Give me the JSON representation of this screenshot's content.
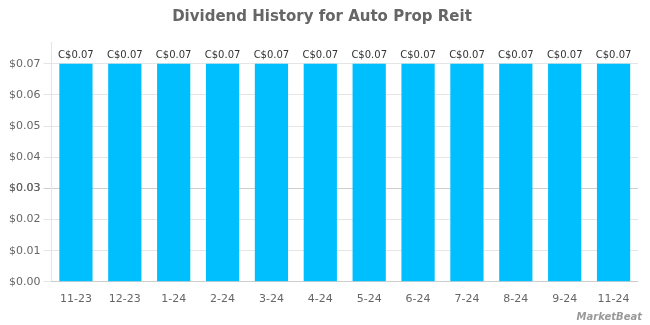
{
  "chart_data": {
    "type": "bar",
    "title": "Dividend History for Auto Prop Reit",
    "categories": [
      "11-23",
      "12-23",
      "1-24",
      "2-24",
      "3-24",
      "4-24",
      "5-24",
      "6-24",
      "7-24",
      "8-24",
      "9-24",
      "11-24"
    ],
    "values": [
      0.07,
      0.07,
      0.07,
      0.07,
      0.07,
      0.07,
      0.07,
      0.07,
      0.07,
      0.07,
      0.07,
      0.07
    ],
    "value_labels": [
      "C$0.07",
      "C$0.07",
      "C$0.07",
      "C$0.07",
      "C$0.07",
      "C$0.07",
      "C$0.07",
      "C$0.07",
      "C$0.07",
      "C$0.07",
      "C$0.07",
      "C$0.07"
    ],
    "data_labels": true,
    "color": "#00bfff",
    "ylim": [
      0,
      0.077
    ],
    "yticks": [
      {
        "value": 0.0,
        "label": "$0.00"
      },
      {
        "value": 0.01,
        "label": "$0.01"
      },
      {
        "value": 0.02,
        "label": "$0.02"
      },
      {
        "value": 0.03,
        "label": "$0.03"
      },
      {
        "value": 0.03,
        "label": "$0.03"
      },
      {
        "value": 0.04,
        "label": "$0.04"
      },
      {
        "value": 0.05,
        "label": "$0.05"
      },
      {
        "value": 0.06,
        "label": "$0.06"
      },
      {
        "value": 0.07,
        "label": "$0.07"
      }
    ],
    "grid": true,
    "annotations": [
      "MarketBeat"
    ]
  }
}
